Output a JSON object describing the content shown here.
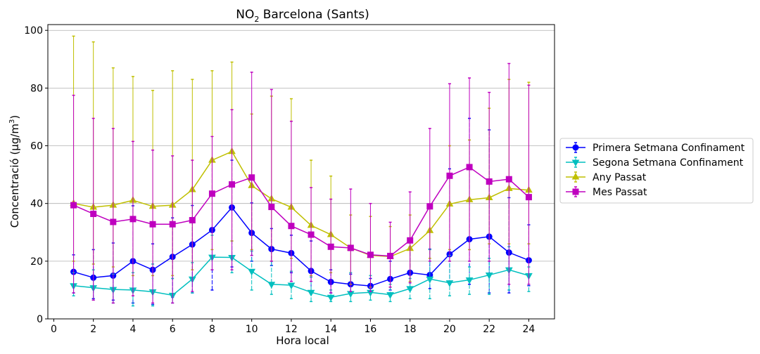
{
  "chart_data": {
    "type": "line",
    "title_main": "NO",
    "title_sub": "2",
    "title_rest": " Barcelona (Sants)",
    "xlabel": "Hora local",
    "ylabel": "Concentració (μg/m",
    "ylabel_sup": "3",
    "ylabel_close": ")",
    "xlim": [
      -0.3,
      25.3
    ],
    "ylim": [
      0,
      102
    ],
    "xticks": [
      0,
      2,
      4,
      6,
      8,
      10,
      12,
      14,
      16,
      18,
      20,
      22,
      24
    ],
    "yticks": [
      0,
      20,
      40,
      60,
      80,
      100
    ],
    "grid": "horizontal",
    "legend_position": "right",
    "x": [
      1,
      2,
      3,
      4,
      5,
      6,
      7,
      8,
      9,
      10,
      11,
      12,
      13,
      14,
      15,
      16,
      17,
      18,
      19,
      20,
      21,
      22,
      23,
      24
    ],
    "series": [
      {
        "name": "Primera Setmana Confinament",
        "color": "#0000ff",
        "marker": "circle",
        "values": [
          16.3,
          14.3,
          15.0,
          20.0,
          17.0,
          21.5,
          25.8,
          30.8,
          38.6,
          29.8,
          24.2,
          22.8,
          16.6,
          12.8,
          12.0,
          11.4,
          13.8,
          16.0,
          15.2,
          22.4,
          27.6,
          28.5,
          23.0,
          20.3
        ],
        "err_low": [
          9.0,
          7.0,
          6.5,
          5.5,
          5.0,
          7.5,
          9.0,
          10.0,
          18.0,
          20.0,
          18.5,
          16.0,
          9.0,
          9.0,
          9.0,
          9.0,
          10.0,
          10.0,
          10.5,
          12.0,
          12.0,
          9.0,
          9.0,
          11.5
        ],
        "err_high": [
          22.2,
          24.0,
          26.3,
          39.2,
          26.0,
          35.0,
          39.3,
          55.0,
          55.0,
          40.2,
          31.3,
          29.0,
          27.0,
          17.0,
          15.5,
          14.0,
          20.0,
          25.0,
          24.2,
          52.0,
          69.5,
          65.5,
          42.0,
          32.6
        ],
        "err_dash": true
      },
      {
        "name": "Segona Setmana Confinament",
        "color": "#00bfbf",
        "marker": "triangle-down",
        "values": [
          11.5,
          10.8,
          10.2,
          10.0,
          9.4,
          8.2,
          13.8,
          21.4,
          21.3,
          16.5,
          12.0,
          11.7,
          9.2,
          7.5,
          8.8,
          9.2,
          8.4,
          10.5,
          13.8,
          12.5,
          13.5,
          15.2,
          17.0,
          15.0
        ],
        "err_low": [
          8.0,
          6.5,
          5.5,
          4.5,
          4.5,
          5.5,
          9.0,
          17.0,
          16.0,
          10.0,
          8.5,
          7.0,
          6.0,
          6.0,
          6.0,
          6.5,
          6.0,
          7.0,
          7.0,
          8.0,
          8.5,
          8.5,
          10.0,
          9.5
        ],
        "err_high": [
          16.0,
          17.0,
          15.5,
          16.0,
          19.0,
          14.0,
          19.5,
          29.0,
          27.0,
          23.5,
          20.0,
          16.5,
          14.5,
          10.0,
          16.0,
          15.0,
          12.0,
          14.0,
          24.0,
          22.0,
          18.0,
          21.0,
          25.0,
          18.0
        ],
        "err_dash": true
      },
      {
        "name": "Any Passat",
        "color": "#bfbf00",
        "marker": "triangle-up",
        "values": [
          40.0,
          38.7,
          39.4,
          41.1,
          39.0,
          39.4,
          44.8,
          55.0,
          58.0,
          46.2,
          41.6,
          38.7,
          32.4,
          29.2,
          24.6,
          22.0,
          21.6,
          24.4,
          30.6,
          39.8,
          41.3,
          42.0,
          45.2,
          44.6
        ],
        "err_low": [
          20.0,
          19.0,
          18.0,
          15.0,
          15.0,
          15.0,
          17.0,
          24.0,
          27.0,
          24.0,
          20.0,
          21.0,
          15.0,
          16.0,
          12.0,
          11.0,
          11.0,
          13.0,
          21.0,
          24.0,
          24.0,
          26.0,
          26.0,
          26.0
        ],
        "err_high": [
          98.0,
          96.0,
          87.0,
          84.0,
          79.2,
          86.0,
          83.0,
          86.0,
          89.0,
          71.0,
          77.2,
          76.3,
          55.0,
          49.5,
          36.0,
          35.5,
          32.0,
          36.0,
          39.0,
          60.0,
          62.0,
          73.0,
          83.0,
          82.0
        ],
        "err_dash": false
      },
      {
        "name": "Mes Passat",
        "color": "#bf00bf",
        "marker": "square",
        "values": [
          39.4,
          36.4,
          33.6,
          34.6,
          32.8,
          32.8,
          34.2,
          43.4,
          46.6,
          49.0,
          38.8,
          32.2,
          29.2,
          25.0,
          24.6,
          22.2,
          21.8,
          27.2,
          39.0,
          49.6,
          52.6,
          47.6,
          48.4,
          42.2
        ],
        "err_low": [
          9.0,
          6.5,
          5.5,
          8.0,
          5.5,
          5.5,
          9.5,
          17.0,
          17.0,
          22.0,
          20.0,
          13.0,
          13.0,
          9.0,
          9.5,
          9.5,
          11.0,
          12.5,
          20.0,
          20.0,
          20.0,
          20.0,
          12.0,
          12.0
        ],
        "err_high": [
          77.5,
          69.5,
          66.0,
          61.5,
          58.5,
          56.5,
          55.0,
          63.2,
          72.5,
          85.5,
          79.5,
          68.5,
          45.5,
          41.5,
          45.0,
          40.0,
          33.5,
          44.0,
          66.0,
          81.5,
          83.5,
          78.5,
          88.5,
          81.0
        ],
        "err_dash": false
      }
    ]
  }
}
